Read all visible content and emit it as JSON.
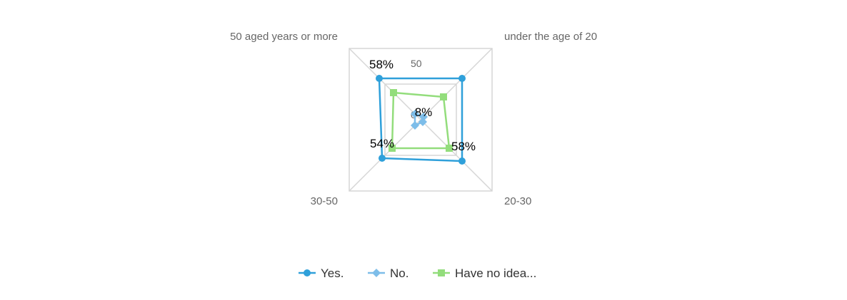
{
  "chart_data": {
    "type": "radar",
    "axes": [
      "under the age of 20",
      "20-30",
      "30-50",
      "50 aged years or more"
    ],
    "ticks": [
      "50",
      "0"
    ],
    "rmax": 100,
    "series": [
      {
        "name": "Yes.",
        "values": [
          58,
          58,
          54,
          58
        ],
        "color": "#2fa0da",
        "marker": "circle"
      },
      {
        "name": "No.",
        "values": [
          4,
          3,
          8,
          8
        ],
        "color": "#7dbde9",
        "marker": "diamond"
      },
      {
        "name": "Have no idea...",
        "values": [
          32,
          40,
          40,
          38
        ],
        "color": "#93dd7c",
        "marker": "square"
      }
    ],
    "data_labels": [
      {
        "series": 0,
        "point": 3,
        "text": "58%"
      },
      {
        "series": 0,
        "point": 1,
        "text": "58%"
      },
      {
        "series": 0,
        "point": 2,
        "text": "54%"
      },
      {
        "series": 1,
        "point": 3,
        "text": "8%"
      }
    ],
    "grid": true,
    "legend_position": "bottom"
  }
}
